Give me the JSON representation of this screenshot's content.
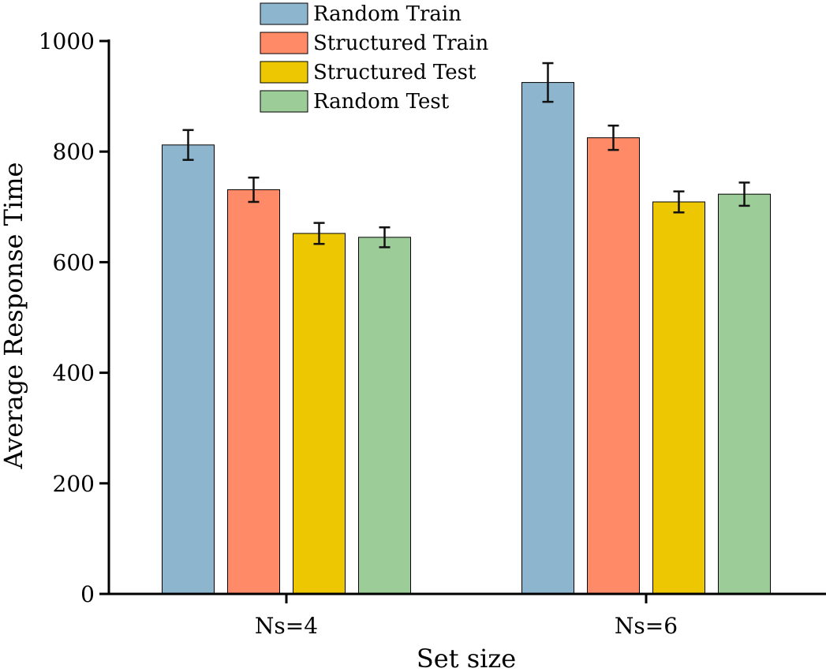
{
  "chart_data": {
    "type": "bar",
    "title": "",
    "xlabel": "Set size",
    "ylabel": "Average Response Time",
    "categories": [
      "Ns=4",
      "Ns=6"
    ],
    "ylim": [
      0,
      1000
    ],
    "yticks": [
      0,
      200,
      400,
      600,
      800,
      1000
    ],
    "grid": false,
    "legend_position": "top-center",
    "series": [
      {
        "name": "Random Train",
        "color": "#8EB5CE",
        "values": [
          812,
          925
        ],
        "errors": [
          27,
          35
        ]
      },
      {
        "name": "Structured Train",
        "color": "#FF8A68",
        "values": [
          731,
          825
        ],
        "errors": [
          22,
          22
        ]
      },
      {
        "name": "Structured Test",
        "color": "#EDC802",
        "values": [
          652,
          709
        ],
        "errors": [
          19,
          19
        ]
      },
      {
        "name": "Random Test",
        "color": "#9CCD98",
        "values": [
          645,
          723
        ],
        "errors": [
          18,
          21
        ]
      }
    ]
  }
}
